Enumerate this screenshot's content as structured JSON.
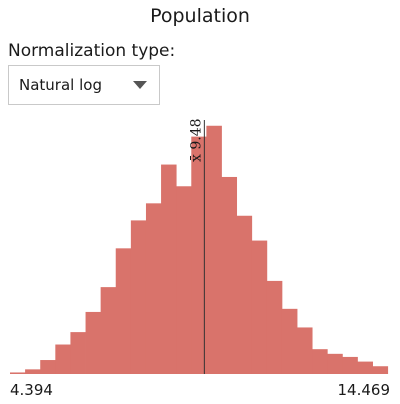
{
  "title": "Population",
  "normalization": {
    "label": "Normalization type:",
    "selected": "Natural log"
  },
  "histogram": {
    "bar_color": "#d9736b",
    "mean_line_color": "#333333",
    "mean_label": "x̄ 9.48"
  },
  "chart_data": {
    "type": "bar",
    "x_min_label": "4.394",
    "x_max_label": "14.469",
    "xlim": [
      4.394,
      14.469
    ],
    "mean": 9.48,
    "bin_width": 0.3953,
    "bin_starts": [
      4.394,
      4.789,
      5.185,
      5.58,
      5.975,
      6.371,
      6.766,
      7.161,
      7.557,
      7.952,
      8.347,
      8.743,
      9.138,
      9.533,
      9.929,
      10.324,
      10.719,
      11.115,
      11.51,
      11.905,
      12.301,
      12.696,
      13.091,
      13.487,
      13.882
    ],
    "counts": [
      1,
      3,
      9,
      19,
      27,
      40,
      56,
      81,
      99,
      110,
      135,
      121,
      153,
      160,
      127,
      102,
      86,
      60,
      42,
      30,
      16,
      13,
      11,
      8,
      5
    ],
    "ylim": [
      0,
      165
    ]
  }
}
